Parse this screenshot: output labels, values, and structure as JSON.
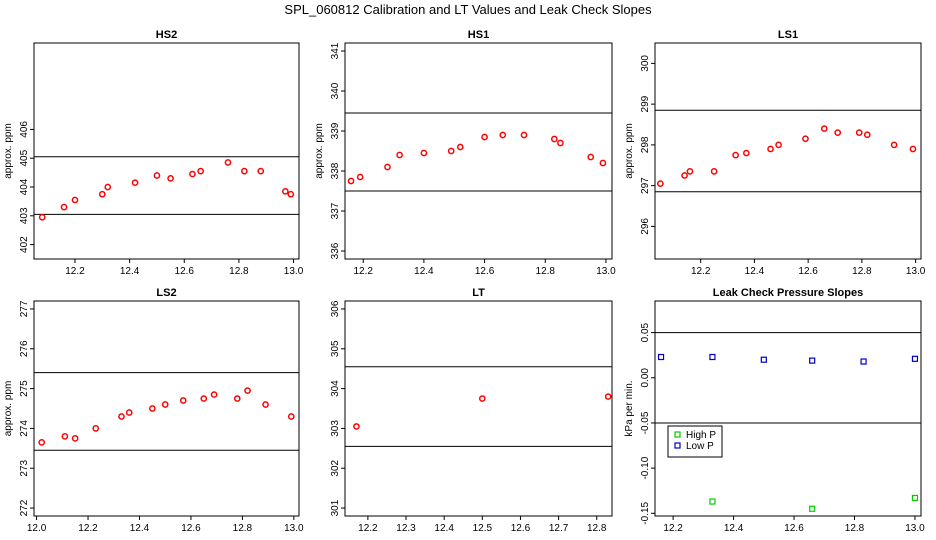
{
  "figure": {
    "title": "SPL_060812  Calibration and LT Values and Leak Check Slopes"
  },
  "chart_data": [
    {
      "type": "scatter",
      "title": "HS2",
      "xlabel": "",
      "ylabel": "approx. ppm",
      "xlim": [
        12.05,
        13.02
      ],
      "ylim": [
        401.5,
        409.0
      ],
      "xticks": [
        "12.2",
        "12.4",
        "12.6",
        "12.8",
        "13.0"
      ],
      "yticks": [
        "402",
        "403",
        "404",
        "405",
        "406"
      ],
      "hlines": [
        403.05,
        405.05
      ],
      "series": [
        {
          "color": "#ff0000",
          "x": [
            12.08,
            12.16,
            12.2,
            12.3,
            12.32,
            12.42,
            12.5,
            12.55,
            12.63,
            12.66,
            12.76,
            12.82,
            12.88,
            12.97,
            12.99
          ],
          "y": [
            402.95,
            403.3,
            403.55,
            403.75,
            404.0,
            404.15,
            404.4,
            404.3,
            404.45,
            404.55,
            404.85,
            404.55,
            404.55,
            403.85,
            403.75
          ]
        }
      ]
    },
    {
      "type": "scatter",
      "title": "HS1",
      "xlabel": "",
      "ylabel": "approx. ppm",
      "xlim": [
        12.14,
        13.02
      ],
      "ylim": [
        335.8,
        341.2
      ],
      "xticks": [
        "12.2",
        "12.4",
        "12.6",
        "12.8",
        "13.0"
      ],
      "yticks": [
        "336",
        "337",
        "338",
        "339",
        "340",
        "341"
      ],
      "hlines": [
        337.5,
        339.45
      ],
      "series": [
        {
          "color": "#ff0000",
          "x": [
            12.16,
            12.19,
            12.28,
            12.32,
            12.4,
            12.49,
            12.52,
            12.6,
            12.66,
            12.73,
            12.83,
            12.85,
            12.95,
            12.99
          ],
          "y": [
            337.75,
            337.85,
            338.1,
            338.4,
            338.45,
            338.5,
            338.6,
            338.85,
            338.9,
            338.9,
            338.8,
            338.7,
            338.35,
            338.2
          ]
        }
      ]
    },
    {
      "type": "scatter",
      "title": "LS1",
      "xlabel": "",
      "ylabel": "approx. ppm",
      "xlim": [
        12.03,
        13.02
      ],
      "ylim": [
        295.2,
        300.5
      ],
      "xticks": [
        "12.2",
        "12.4",
        "12.6",
        "12.8",
        "13.0"
      ],
      "yticks": [
        "296",
        "297",
        "298",
        "299",
        "300"
      ],
      "hlines": [
        296.85,
        298.85
      ],
      "series": [
        {
          "color": "#ff0000",
          "x": [
            12.05,
            12.14,
            12.16,
            12.25,
            12.33,
            12.37,
            12.46,
            12.49,
            12.59,
            12.66,
            12.71,
            12.79,
            12.82,
            12.92,
            12.99
          ],
          "y": [
            297.05,
            297.25,
            297.35,
            297.35,
            297.75,
            297.8,
            297.9,
            298.0,
            298.15,
            298.4,
            298.3,
            298.3,
            298.25,
            298.0,
            297.9
          ]
        }
      ]
    },
    {
      "type": "scatter",
      "title": "LS2",
      "xlabel": "",
      "ylabel": "approx. ppm",
      "xlim": [
        11.99,
        13.02
      ],
      "ylim": [
        271.8,
        277.2
      ],
      "xticks": [
        "12.0",
        "12.2",
        "12.4",
        "12.6",
        "12.8",
        "13.0"
      ],
      "yticks": [
        "272",
        "273",
        "274",
        "275",
        "276",
        "277"
      ],
      "hlines": [
        273.45,
        275.4
      ],
      "series": [
        {
          "color": "#ff0000",
          "x": [
            12.02,
            12.11,
            12.15,
            12.23,
            12.33,
            12.36,
            12.45,
            12.5,
            12.57,
            12.65,
            12.69,
            12.78,
            12.82,
            12.89,
            12.99
          ],
          "y": [
            273.65,
            273.8,
            273.75,
            274.0,
            274.3,
            274.4,
            274.5,
            274.6,
            274.7,
            274.75,
            274.85,
            274.75,
            274.95,
            274.6,
            274.3
          ]
        }
      ]
    },
    {
      "type": "scatter",
      "title": "LT",
      "xlabel": "",
      "ylabel": "",
      "xlim": [
        12.14,
        12.84
      ],
      "ylim": [
        300.8,
        306.2
      ],
      "xticks": [
        "12.2",
        "12.3",
        "12.4",
        "12.5",
        "12.6",
        "12.7",
        "12.8"
      ],
      "yticks": [
        "301",
        "302",
        "303",
        "304",
        "305",
        "306"
      ],
      "hlines": [
        302.55,
        304.55
      ],
      "series": [
        {
          "color": "#ff0000",
          "x": [
            12.17,
            12.5,
            12.83
          ],
          "y": [
            303.05,
            303.75,
            303.8
          ]
        }
      ]
    },
    {
      "type": "scatter",
      "title": "Leak Check Pressure Slopes",
      "xlabel": "",
      "ylabel": "kPa per min.",
      "xlim": [
        12.14,
        13.02
      ],
      "ylim": [
        -0.153,
        0.085
      ],
      "xticks": [
        "12.2",
        "12.4",
        "12.6",
        "12.8",
        "13.0"
      ],
      "yticks": [
        "-0.15",
        "-0.10",
        "-0.05",
        "0.00",
        "0.05"
      ],
      "hlines": [
        0.05,
        -0.05
      ],
      "legend": "bottom-left",
      "series": [
        {
          "name": "High P",
          "color": "#00cc00",
          "x": [
            12.33,
            12.66,
            13.0
          ],
          "y": [
            -0.137,
            -0.145,
            -0.133
          ]
        },
        {
          "name": "Low P",
          "color": "#0000cc",
          "x": [
            12.16,
            12.33,
            12.5,
            12.66,
            12.83,
            13.0
          ],
          "y": [
            0.023,
            0.023,
            0.02,
            0.019,
            0.018,
            0.021
          ]
        }
      ]
    }
  ]
}
